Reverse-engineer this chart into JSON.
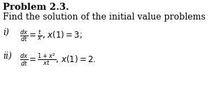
{
  "title": "Problem 2.3.",
  "subtitle": "Find the solution of the initial value problems",
  "line1_label": "i)",
  "line1_math": "$\\frac{dx}{dt} = \\frac{t}{x}$, $x(1) = 3$;",
  "line2_label": "ii)",
  "line2_math": "$\\frac{dx}{dt} = \\frac{1+x^2}{xt}$, $x(1) = 2.$",
  "bg_color": "#ffffff",
  "text_color": "#000000",
  "title_fontsize": 9.5,
  "subtitle_fontsize": 9.0,
  "math_fontsize": 8.5,
  "label_fontsize": 9.0
}
